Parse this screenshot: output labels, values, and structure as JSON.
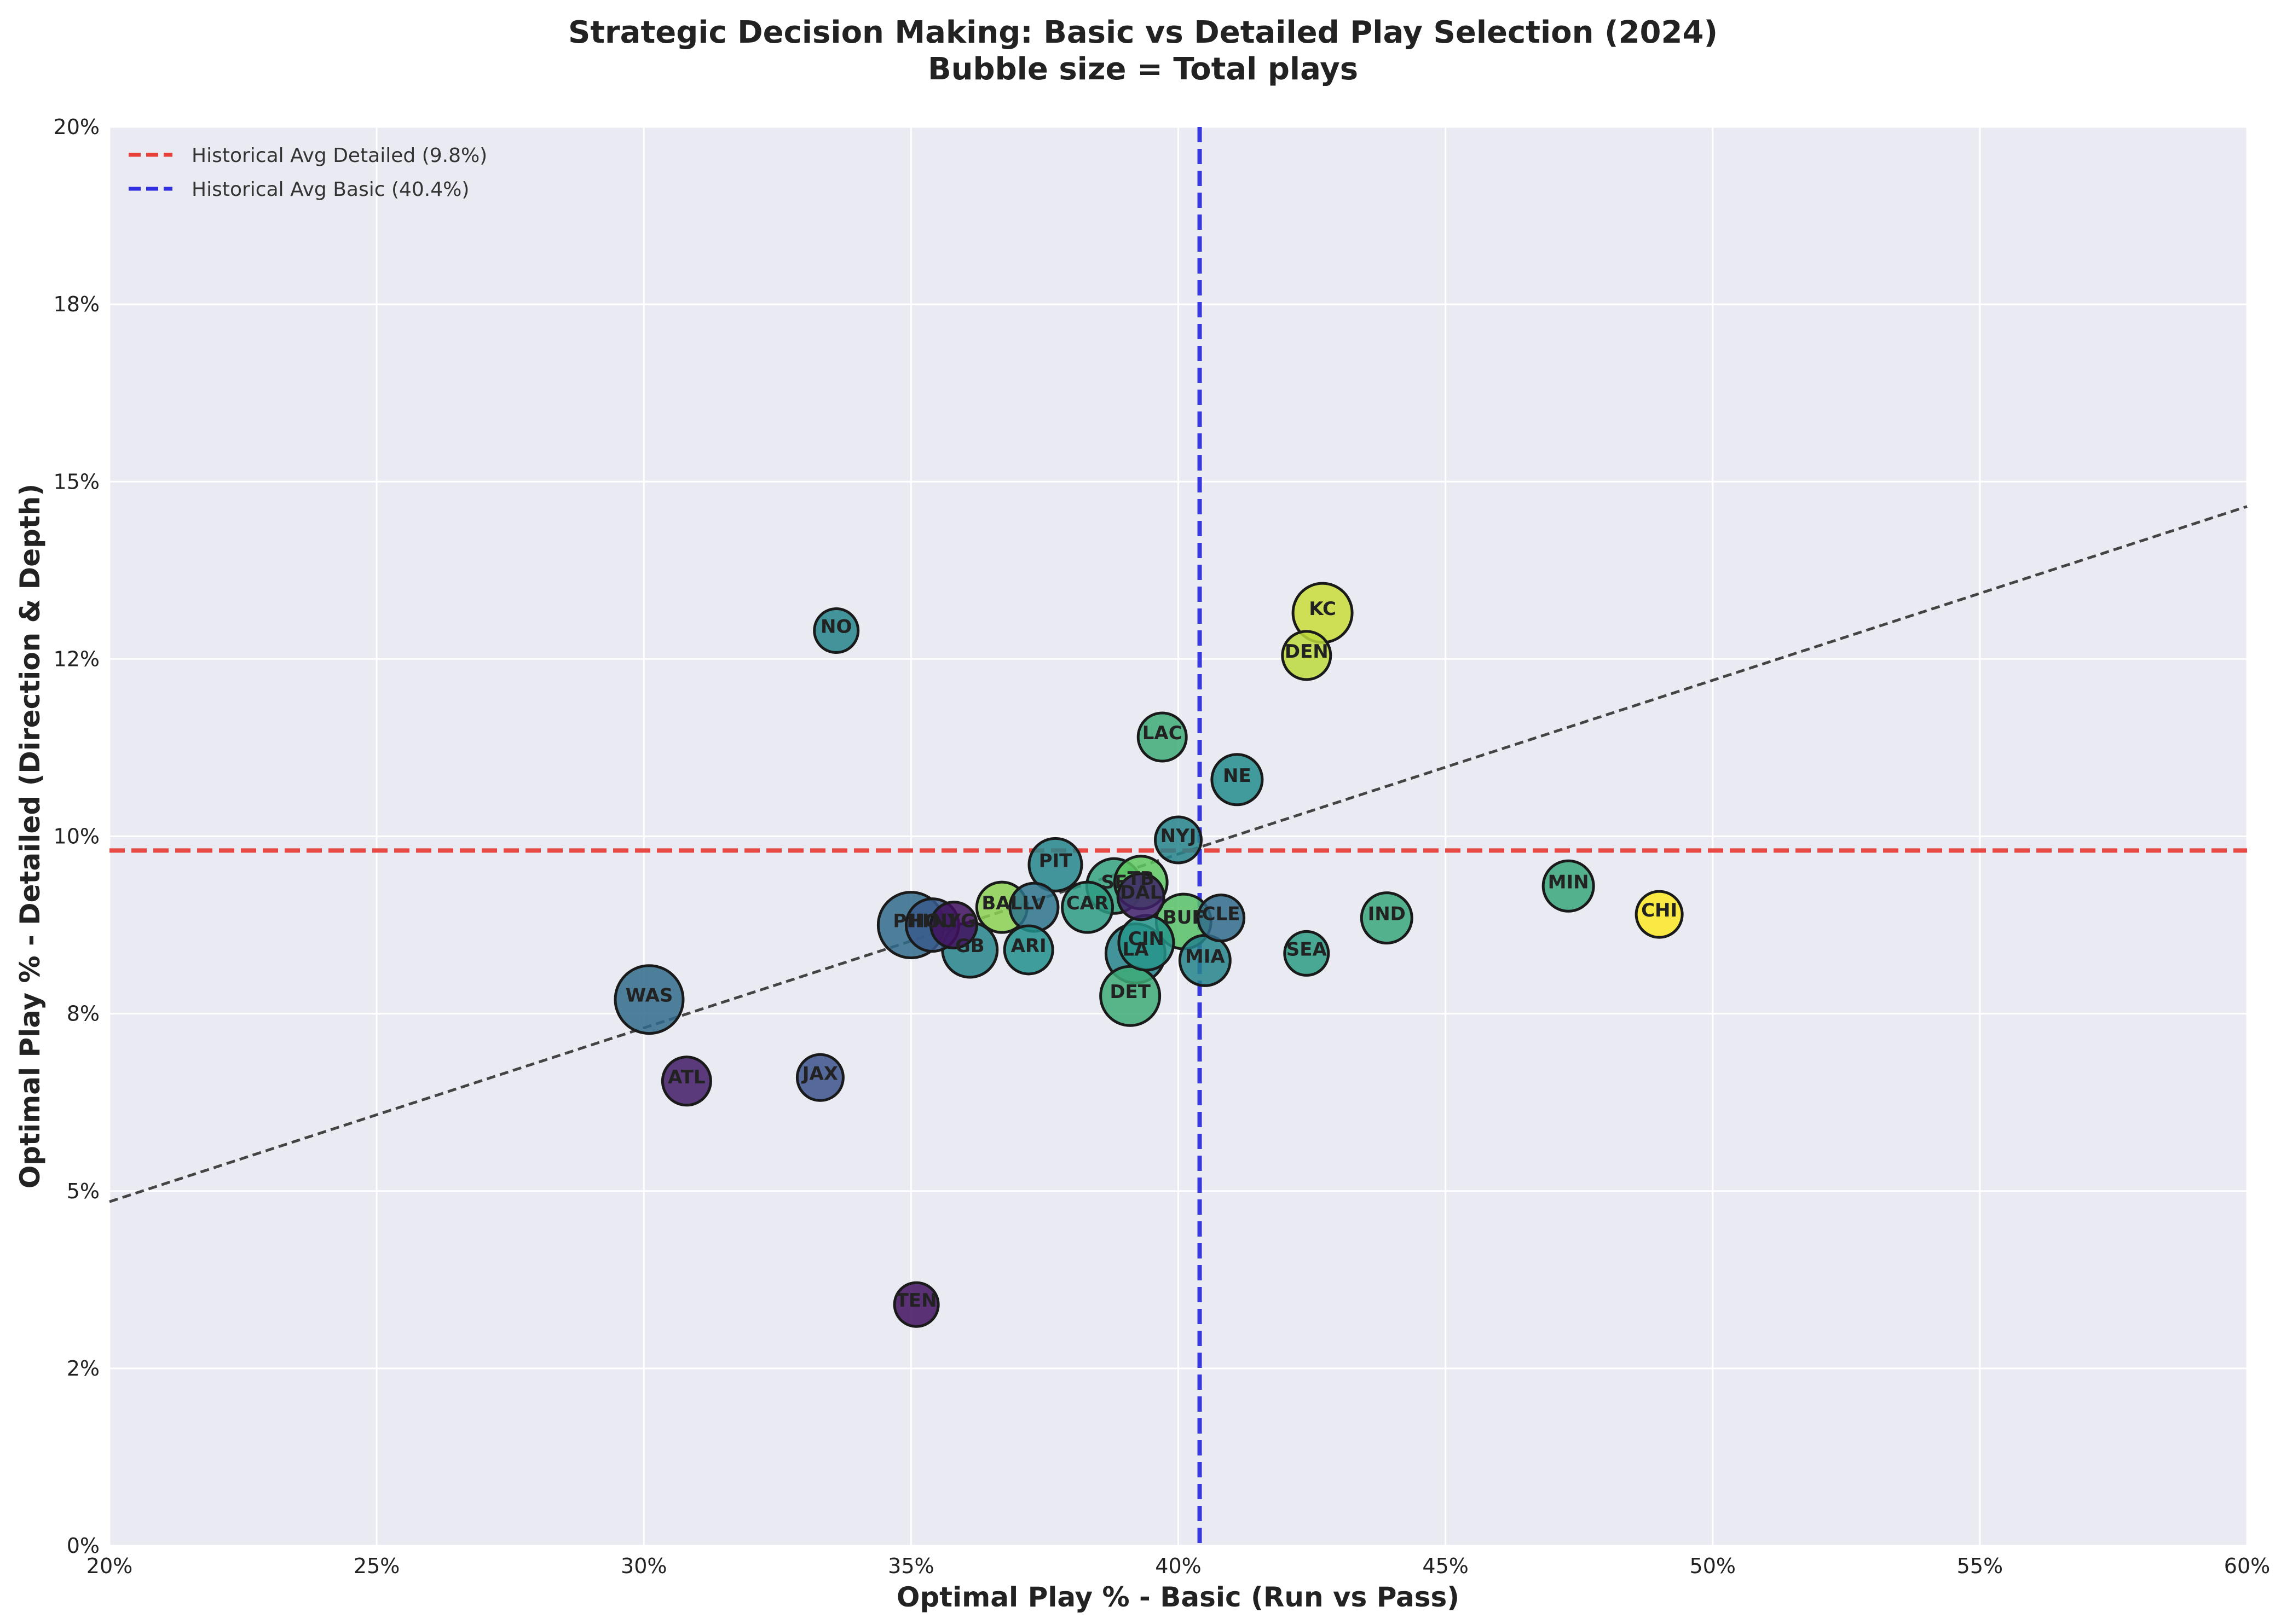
{
  "chart_data": {
    "type": "scatter",
    "title": "Strategic Decision Making: Basic vs Detailed Play Selection (2024)",
    "subtitle": "Bubble size = Total plays",
    "xlabel": "Optimal Play % - Basic (Run vs Pass)",
    "ylabel": "Optimal Play % - Detailed (Direction & Depth)",
    "xlim": [
      20,
      60
    ],
    "ylim": [
      0,
      20
    ],
    "x_ticks": [
      "20%",
      "25%",
      "30%",
      "35%",
      "40%",
      "45%",
      "50%",
      "55%",
      "60%"
    ],
    "y_ticks": [
      "0%",
      "2%",
      "5%",
      "8%",
      "10%",
      "12%",
      "15%",
      "18%",
      "20%"
    ],
    "grid": true,
    "legend_position": "top-left",
    "legend": [
      {
        "label": "Historical Avg Detailed (9.8%)",
        "color": "#e8403a",
        "style": "dashed"
      },
      {
        "label": "Historical Avg Basic (40.4%)",
        "color": "#3030e0",
        "style": "dashed"
      }
    ],
    "reference_lines": {
      "horizontal_y": 9.8,
      "vertical_x": 40.4
    },
    "trend_line": {
      "x": [
        20,
        60
      ],
      "y": [
        4.85,
        14.65
      ],
      "color": "#333333"
    },
    "size_encoding": "Total plays",
    "points": [
      {
        "team": "NO",
        "x": 33.6,
        "y": 12.9,
        "size": 0.3,
        "color_value": 0.45
      },
      {
        "team": "KC",
        "x": 42.7,
        "y": 13.15,
        "size": 0.65,
        "color_value": 0.92
      },
      {
        "team": "DEN",
        "x": 42.4,
        "y": 12.55,
        "size": 0.4,
        "color_value": 0.9
      },
      {
        "team": "LAC",
        "x": 39.7,
        "y": 11.4,
        "size": 0.4,
        "color_value": 0.62
      },
      {
        "team": "NE",
        "x": 41.1,
        "y": 10.8,
        "size": 0.45,
        "color_value": 0.48
      },
      {
        "team": "NYJ",
        "x": 40.0,
        "y": 9.95,
        "size": 0.35,
        "color_value": 0.45
      },
      {
        "team": "PIT",
        "x": 37.7,
        "y": 9.6,
        "size": 0.5,
        "color_value": 0.46
      },
      {
        "team": "MIN",
        "x": 47.3,
        "y": 9.3,
        "size": 0.45,
        "color_value": 0.6
      },
      {
        "team": "TB",
        "x": 39.3,
        "y": 9.35,
        "size": 0.5,
        "color_value": 0.75
      },
      {
        "team": "SF",
        "x": 38.8,
        "y": 9.3,
        "size": 0.55,
        "color_value": 0.58
      },
      {
        "team": "DAL",
        "x": 39.3,
        "y": 9.15,
        "size": 0.35,
        "color_value": 0.1
      },
      {
        "team": "BAL",
        "x": 36.7,
        "y": 9.0,
        "size": 0.45,
        "color_value": 0.82
      },
      {
        "team": "LV",
        "x": 37.3,
        "y": 9.0,
        "size": 0.4,
        "color_value": 0.38
      },
      {
        "team": "CAR",
        "x": 38.3,
        "y": 9.0,
        "size": 0.45,
        "color_value": 0.55
      },
      {
        "team": "CHI",
        "x": 49.0,
        "y": 8.9,
        "size": 0.35,
        "color_value": 1.0
      },
      {
        "team": "IND",
        "x": 43.9,
        "y": 8.85,
        "size": 0.45,
        "color_value": 0.6
      },
      {
        "team": "CLE",
        "x": 40.8,
        "y": 8.85,
        "size": 0.35,
        "color_value": 0.35
      },
      {
        "team": "BUF",
        "x": 40.1,
        "y": 8.8,
        "size": 0.55,
        "color_value": 0.72
      },
      {
        "team": "PHI",
        "x": 35.0,
        "y": 8.75,
        "size": 0.8,
        "color_value": 0.35
      },
      {
        "team": "HOU",
        "x": 35.4,
        "y": 8.75,
        "size": 0.5,
        "color_value": 0.28
      },
      {
        "team": "NYG",
        "x": 35.8,
        "y": 8.75,
        "size": 0.35,
        "color_value": 0.05
      },
      {
        "team": "CIN",
        "x": 39.4,
        "y": 8.5,
        "size": 0.55,
        "color_value": 0.52
      },
      {
        "team": "GB",
        "x": 36.1,
        "y": 8.4,
        "size": 0.55,
        "color_value": 0.45
      },
      {
        "team": "ARI",
        "x": 37.2,
        "y": 8.4,
        "size": 0.4,
        "color_value": 0.5
      },
      {
        "team": "LA",
        "x": 39.2,
        "y": 8.35,
        "size": 0.65,
        "color_value": 0.45
      },
      {
        "team": "SEA",
        "x": 42.4,
        "y": 8.35,
        "size": 0.3,
        "color_value": 0.55
      },
      {
        "team": "MIA",
        "x": 40.5,
        "y": 8.25,
        "size": 0.45,
        "color_value": 0.45
      },
      {
        "team": "DET",
        "x": 39.1,
        "y": 7.75,
        "size": 0.65,
        "color_value": 0.62
      },
      {
        "team": "WAS",
        "x": 30.1,
        "y": 7.7,
        "size": 0.85,
        "color_value": 0.35
      },
      {
        "team": "ATL",
        "x": 30.8,
        "y": 6.55,
        "size": 0.4,
        "color_value": 0.08
      },
      {
        "team": "JAX",
        "x": 33.3,
        "y": 6.6,
        "size": 0.35,
        "color_value": 0.25
      },
      {
        "team": "TEN",
        "x": 35.1,
        "y": 3.4,
        "size": 0.3,
        "color_value": 0.05
      }
    ]
  }
}
